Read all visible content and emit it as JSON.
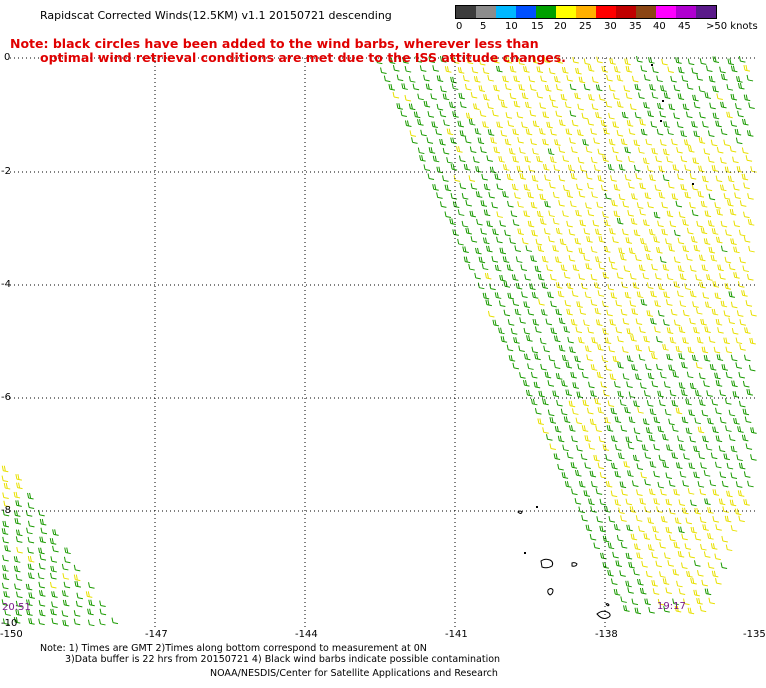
{
  "title": "Rapidscat Corrected Winds(12.5KM) v1.1 20150721 descending",
  "note_line1": "Note: black circles have been added to the wind barbs, wherever less than",
  "note_line2": "optimal wind retrieval conditions are met due to the ISS attitude changes.",
  "colorbar": {
    "labels": [
      "0",
      "5",
      "10",
      "15",
      "20",
      "25",
      "30",
      "35",
      "40",
      "45",
      ">50 knots"
    ],
    "colors": [
      "#3c3c3c",
      "#8c8c8c",
      "#00b8ff",
      "#0050ff",
      "#00a000",
      "#ffff00",
      "#ffb000",
      "#ff0000",
      "#c00000",
      "#8b4513",
      "#ff00ff",
      "#b000d0",
      "#5a1a8a"
    ]
  },
  "lat_labels": [
    "0",
    "-2",
    "-4",
    "-6",
    "-8",
    "-10"
  ],
  "lon_labels": [
    "-150",
    "-147",
    "-144",
    "-141",
    "-138",
    "-135"
  ],
  "time_left": "20:51",
  "time_right": "19:17",
  "footer_line1": "Note: 1) Times are GMT 2)Times along bottom correspond to measurement at 0N",
  "footer_line2": "3)Data buffer is 22 hrs from 20150721 4) Black wind barbs indicate possible contamination",
  "footer_line3": "NOAA/NESDIS/Center for Satellite Applications and Research",
  "legend_colors": {
    "green": "#1a9a00",
    "yellow": "#e8e000"
  }
}
